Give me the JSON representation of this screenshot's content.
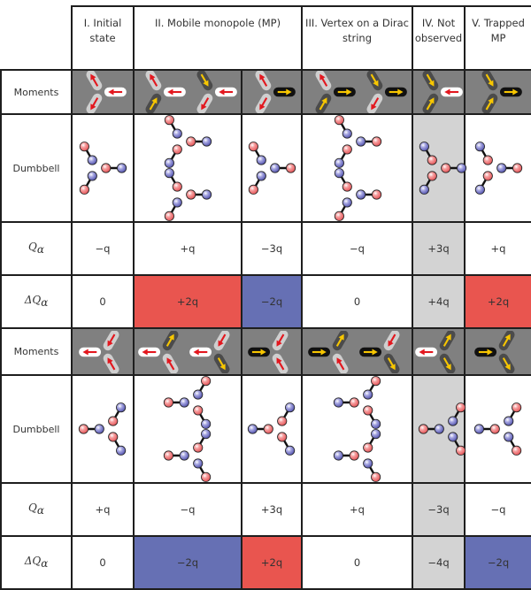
{
  "headers": [
    "I. Initial state",
    "II. Mobile monopole (MP)",
    "III. Vertex on a Dirac string",
    "IV. Not observed",
    "V. Trapped MP"
  ],
  "row_labels": {
    "moments": "Moments",
    "dumbbell": "Dumbbell",
    "q": {
      "main": "Q",
      "sub": "α"
    },
    "dq": {
      "main": "ΔQ",
      "sub": "α"
    }
  },
  "colors": {
    "moment_bg": "#808080",
    "pill_light": "#cfcfcf",
    "pill_dark": "#4b4b4b",
    "pill_white": "#ffffff",
    "pill_black": "#111111",
    "arrow_red": "#e3171e",
    "arrow_yellow": "#f7c600",
    "ball_red": "#f2787a",
    "ball_blue": "#8a8ad4",
    "cell_red": "#e9554f",
    "cell_blue": "#6670b4",
    "cell_gray": "#d3d3d3",
    "cell_white": "#ffffff"
  },
  "sections": [
    {
      "mirror": false,
      "columns": [
        {
          "vertices": [
            {
              "a": [
                "light",
                "out"
              ],
              "b": [
                "light",
                "out"
              ],
              "c": [
                "white",
                "in"
              ]
            }
          ],
          "q": "−q",
          "dq": "0",
          "q_fill": "white",
          "dq_fill": "white"
        },
        {
          "vertices": [
            {
              "a": [
                "light",
                "out"
              ],
              "b": [
                "dark",
                "in"
              ],
              "c": [
                "white",
                "in"
              ]
            },
            {
              "a": [
                "dark",
                "in"
              ],
              "b": [
                "light",
                "out"
              ],
              "c": [
                "white",
                "in"
              ]
            }
          ],
          "q": "+q",
          "dq": "+2q",
          "q_fill": "white",
          "dq_fill": "red"
        },
        {
          "vertices": [
            {
              "a": [
                "light",
                "out"
              ],
              "b": [
                "light",
                "out"
              ],
              "c": [
                "black",
                "out"
              ]
            }
          ],
          "q": "−3q",
          "dq": "−2q",
          "q_fill": "white",
          "dq_fill": "blue"
        },
        {
          "vertices": [
            {
              "a": [
                "light",
                "out"
              ],
              "b": [
                "dark",
                "in"
              ],
              "c": [
                "black",
                "out"
              ]
            },
            {
              "a": [
                "dark",
                "in"
              ],
              "b": [
                "light",
                "out"
              ],
              "c": [
                "black",
                "out"
              ]
            }
          ],
          "q": "−q",
          "dq": "0",
          "q_fill": "white",
          "dq_fill": "white"
        },
        {
          "vertices": [
            {
              "a": [
                "dark",
                "in"
              ],
              "b": [
                "dark",
                "in"
              ],
              "c": [
                "white",
                "in"
              ]
            }
          ],
          "q": "+3q",
          "dq": "+4q",
          "q_fill": "gray",
          "dq_fill": "gray",
          "dumbbell_fill": "gray"
        },
        {
          "vertices": [
            {
              "a": [
                "dark",
                "in"
              ],
              "b": [
                "dark",
                "in"
              ],
              "c": [
                "black",
                "out"
              ]
            }
          ],
          "q": "+q",
          "dq": "+2q",
          "q_fill": "white",
          "dq_fill": "red"
        }
      ]
    },
    {
      "mirror": true,
      "columns": [
        {
          "vertices": [
            {
              "a": [
                "light",
                "in"
              ],
              "b": [
                "light",
                "in"
              ],
              "c": [
                "white",
                "out"
              ]
            }
          ],
          "q": "+q",
          "dq": "0",
          "q_fill": "white",
          "dq_fill": "white"
        },
        {
          "vertices": [
            {
              "a": [
                "dark",
                "out"
              ],
              "b": [
                "light",
                "in"
              ],
              "c": [
                "white",
                "out"
              ]
            },
            {
              "a": [
                "light",
                "in"
              ],
              "b": [
                "dark",
                "out"
              ],
              "c": [
                "white",
                "out"
              ]
            }
          ],
          "q": "−q",
          "dq": "−2q",
          "q_fill": "white",
          "dq_fill": "blue"
        },
        {
          "vertices": [
            {
              "a": [
                "light",
                "in"
              ],
              "b": [
                "light",
                "in"
              ],
              "c": [
                "black",
                "in"
              ]
            }
          ],
          "q": "+3q",
          "dq": "+2q",
          "q_fill": "white",
          "dq_fill": "red"
        },
        {
          "vertices": [
            {
              "a": [
                "dark",
                "out"
              ],
              "b": [
                "light",
                "in"
              ],
              "c": [
                "black",
                "in"
              ]
            },
            {
              "a": [
                "light",
                "in"
              ],
              "b": [
                "dark",
                "out"
              ],
              "c": [
                "black",
                "in"
              ]
            }
          ],
          "q": "+q",
          "dq": "0",
          "q_fill": "white",
          "dq_fill": "white"
        },
        {
          "vertices": [
            {
              "a": [
                "dark",
                "out"
              ],
              "b": [
                "dark",
                "out"
              ],
              "c": [
                "white",
                "out"
              ]
            }
          ],
          "q": "−3q",
          "dq": "−4q",
          "q_fill": "gray",
          "dq_fill": "gray",
          "dumbbell_fill": "gray"
        },
        {
          "vertices": [
            {
              "a": [
                "dark",
                "out"
              ],
              "b": [
                "dark",
                "out"
              ],
              "c": [
                "black",
                "in"
              ]
            }
          ],
          "q": "−q",
          "dq": "−2q",
          "q_fill": "white",
          "dq_fill": "blue"
        }
      ]
    }
  ]
}
